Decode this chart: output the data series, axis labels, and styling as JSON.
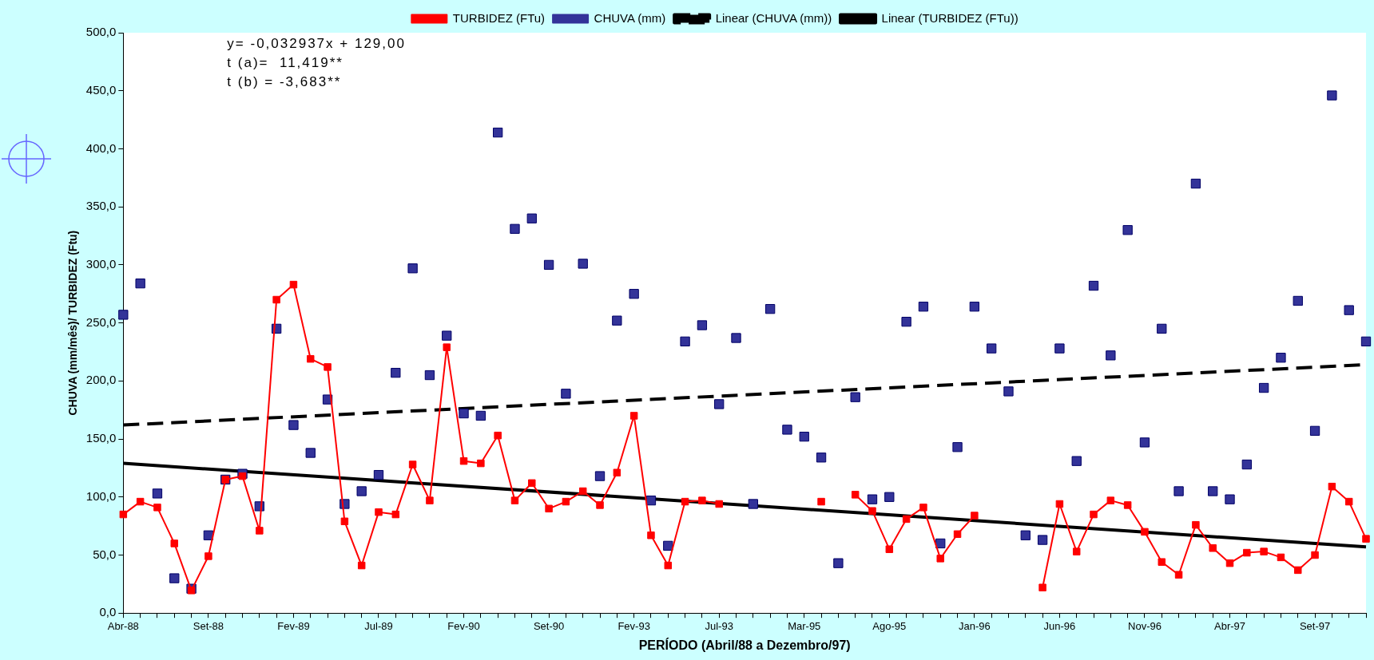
{
  "chart_data": {
    "type": "line",
    "xlabel": "PERÍODO (Abril/88 a Dezembro/97)",
    "ylabel": "CHUVA (mm/mês)/ TURBIDEZ (Ftu)",
    "annotations": [
      "y= -0,032937x + 129,00",
      "t (a)=  11,419**",
      "t (b) = -3,683**"
    ],
    "categories": [
      "Abr-88",
      null,
      null,
      null,
      null,
      "Set-88",
      null,
      null,
      null,
      null,
      "Fev-89",
      null,
      null,
      null,
      null,
      "Jul-89",
      null,
      null,
      null,
      null,
      "Fev-90",
      null,
      null,
      null,
      null,
      "Set-90",
      null,
      null,
      null,
      null,
      "Fev-93",
      null,
      null,
      null,
      null,
      "Jul-93",
      null,
      null,
      null,
      null,
      "Mar-95",
      null,
      null,
      null,
      null,
      "Ago-95",
      null,
      null,
      null,
      null,
      "Jan-96",
      null,
      null,
      null,
      null,
      "Jun-96",
      null,
      null,
      null,
      null,
      "Nov-96",
      null,
      null,
      null,
      null,
      "Abr-97",
      null,
      null,
      null,
      null,
      "Set-97",
      null,
      null,
      null
    ],
    "series": [
      {
        "name": "TURBIDEZ (FTu)",
        "type": "line",
        "marker": "square",
        "line_style": "solid",
        "color": "#ff0000",
        "values": [
          85,
          96,
          91,
          60,
          19.5,
          49,
          115,
          118,
          71,
          270,
          283,
          219,
          212,
          79,
          41,
          87,
          85,
          128,
          97,
          229,
          131,
          129,
          153,
          97,
          112,
          90,
          96,
          105,
          93,
          121,
          170,
          67,
          41,
          96,
          97,
          94,
          null,
          null,
          null,
          null,
          null,
          96,
          null,
          102,
          88,
          55,
          81,
          91,
          47,
          68,
          84,
          null,
          null,
          null,
          22,
          94,
          53,
          85,
          97,
          93,
          70,
          44,
          33,
          76,
          56,
          43,
          52,
          53,
          48,
          37,
          50,
          109,
          96,
          64
        ]
      },
      {
        "name": "CHUVA (mm)",
        "type": "scatter",
        "marker": "square",
        "color": "#333399",
        "values": [
          257,
          284,
          103,
          30,
          21,
          67,
          115,
          120,
          92,
          245,
          162,
          138,
          184,
          94,
          105,
          119,
          207,
          297,
          205,
          239,
          172,
          170,
          414,
          331,
          340,
          300,
          189,
          301,
          118,
          252,
          275,
          97,
          58,
          234,
          248,
          180,
          237,
          94,
          262,
          158,
          152,
          134,
          43,
          186,
          98,
          100,
          251,
          264,
          60,
          143,
          264,
          228,
          191,
          67,
          63,
          228,
          131,
          282,
          222,
          330,
          147,
          245,
          105,
          370,
          105,
          98,
          128,
          194,
          220,
          269,
          157,
          446,
          261,
          234
        ]
      },
      {
        "name": "Linear (CHUVA (mm))",
        "type": "line",
        "marker": "none",
        "line_style": "dashed",
        "color": "#000000",
        "values": [
          162,
          null,
          null,
          null,
          null,
          null,
          null,
          null,
          null,
          null,
          null,
          null,
          null,
          null,
          null,
          null,
          null,
          null,
          null,
          null,
          null,
          null,
          null,
          null,
          null,
          null,
          null,
          null,
          null,
          null,
          null,
          null,
          null,
          null,
          null,
          null,
          null,
          null,
          null,
          null,
          null,
          null,
          null,
          null,
          null,
          null,
          null,
          null,
          null,
          null,
          null,
          null,
          null,
          null,
          null,
          null,
          null,
          null,
          null,
          null,
          null,
          null,
          null,
          null,
          null,
          null,
          null,
          null,
          null,
          null,
          null,
          null,
          null,
          214
        ]
      },
      {
        "name": "Linear (TURBIDEZ (FTu))",
        "type": "line",
        "marker": "none",
        "line_style": "solid",
        "color": "#000000",
        "values": [
          129,
          null,
          null,
          null,
          null,
          null,
          null,
          null,
          null,
          null,
          null,
          null,
          null,
          null,
          null,
          null,
          null,
          null,
          null,
          null,
          null,
          null,
          null,
          null,
          null,
          null,
          null,
          null,
          null,
          null,
          null,
          null,
          null,
          null,
          null,
          null,
          null,
          null,
          null,
          null,
          null,
          null,
          null,
          null,
          null,
          null,
          null,
          null,
          null,
          null,
          null,
          null,
          null,
          null,
          null,
          null,
          null,
          null,
          null,
          null,
          null,
          null,
          null,
          null,
          null,
          null,
          null,
          null,
          null,
          null,
          null,
          null,
          null,
          57
        ]
      }
    ],
    "ylim": [
      0,
      500
    ],
    "yticks": [
      {
        "value": 0,
        "label": "0,0"
      },
      {
        "value": 50,
        "label": "50,0"
      },
      {
        "value": 100,
        "label": "100,0"
      },
      {
        "value": 150,
        "label": "150,0"
      },
      {
        "value": 200,
        "label": "200,0"
      },
      {
        "value": 250,
        "label": "250,0"
      },
      {
        "value": 300,
        "label": "300,0"
      },
      {
        "value": 350,
        "label": "350,0"
      },
      {
        "value": 400,
        "label": "400,0"
      },
      {
        "value": 450,
        "label": "450,0"
      },
      {
        "value": 500,
        "label": "500,0"
      }
    ],
    "grid": false,
    "legend": "top"
  }
}
